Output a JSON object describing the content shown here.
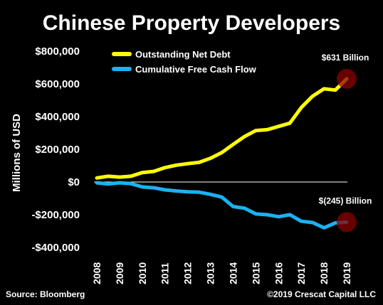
{
  "chart_data": {
    "type": "line",
    "title": "Chinese Property Developers",
    "ylabel": "Millions of USD",
    "xlabel": "",
    "ylim": [
      -400000,
      800000
    ],
    "yticks": [
      {
        "value": 800000,
        "label": "$800,000"
      },
      {
        "value": 600000,
        "label": "$600,000"
      },
      {
        "value": 400000,
        "label": "$400,000"
      },
      {
        "value": 200000,
        "label": "$200,000"
      },
      {
        "value": 0,
        "label": "$0"
      },
      {
        "value": -200000,
        "label": "-$200,000"
      },
      {
        "value": -400000,
        "label": "-$400,000"
      }
    ],
    "xticks": [
      "2008",
      "2009",
      "2010",
      "2011",
      "2012",
      "2013",
      "2014",
      "2015",
      "2016",
      "2017",
      "2018",
      "2019"
    ],
    "xlim": [
      2008,
      2019
    ],
    "grid": false,
    "legend_position": "top-left",
    "series": [
      {
        "name": "Outstanding Net Debt",
        "color": "#ffff00",
        "x": [
          2008,
          2008.5,
          2009,
          2009.5,
          2010,
          2010.5,
          2011,
          2011.5,
          2012,
          2012.5,
          2013,
          2013.5,
          2014,
          2014.5,
          2015,
          2015.5,
          2016,
          2016.5,
          2017,
          2017.5,
          2018,
          2018.5,
          2019
        ],
        "values": [
          25000,
          35000,
          30000,
          35000,
          58000,
          65000,
          88000,
          103000,
          112000,
          120000,
          145000,
          180000,
          230000,
          278000,
          315000,
          320000,
          340000,
          360000,
          455000,
          525000,
          570000,
          562000,
          631000
        ]
      },
      {
        "name": "Cumulative Free Cash Flow",
        "color": "#1ab2f0",
        "x": [
          2008,
          2008.5,
          2009,
          2009.5,
          2010,
          2010.5,
          2011,
          2011.5,
          2012,
          2012.5,
          2013,
          2013.5,
          2014,
          2014.5,
          2015,
          2015.5,
          2016,
          2016.5,
          2017,
          2017.5,
          2018,
          2018.5,
          2019
        ],
        "values": [
          -5000,
          -12000,
          -5000,
          -10000,
          -30000,
          -35000,
          -48000,
          -55000,
          -60000,
          -62000,
          -75000,
          -92000,
          -150000,
          -160000,
          -195000,
          -200000,
          -212000,
          -200000,
          -240000,
          -248000,
          -280000,
          -250000,
          -245000
        ]
      }
    ],
    "annotations": [
      {
        "text": "$631 Billion",
        "x": 2019,
        "y": 631000,
        "color": "#8b0000"
      },
      {
        "text": "$(245) Billion",
        "x": 2019,
        "y": -245000,
        "color": "#8b0000"
      }
    ]
  },
  "footer": {
    "source": "Source: Bloomberg",
    "copyright": "©2019 Crescat Capital LLC"
  }
}
